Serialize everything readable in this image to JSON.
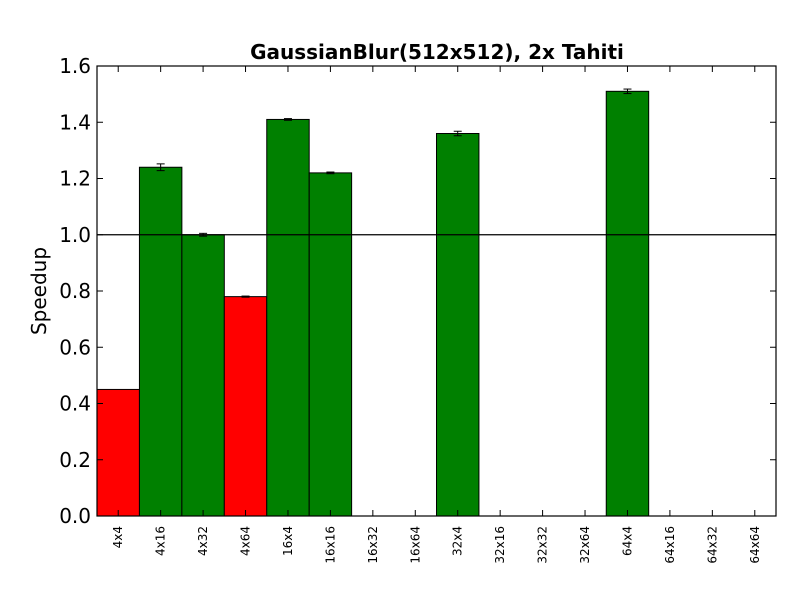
{
  "chart_data": {
    "type": "bar",
    "title": "GaussianBlur(512x512), 2x Tahiti",
    "xlabel": "",
    "ylabel": "Speedup",
    "ylim": [
      0,
      1.6
    ],
    "yticks": [
      "0.0",
      "0.2",
      "0.4",
      "0.6",
      "0.8",
      "1.0",
      "1.2",
      "1.4",
      "1.6"
    ],
    "reference_line": 1.0,
    "grid": false,
    "categories": [
      "4x4",
      "4x16",
      "4x32",
      "4x64",
      "16x4",
      "16x16",
      "16x32",
      "16x64",
      "32x4",
      "32x16",
      "32x32",
      "32x64",
      "64x4",
      "64x16",
      "64x32",
      "64x64"
    ],
    "values": [
      0.45,
      1.24,
      1.0,
      0.78,
      1.41,
      1.22,
      null,
      null,
      1.36,
      null,
      null,
      null,
      1.51,
      null,
      null,
      null
    ],
    "errors": [
      0.0,
      0.012,
      0.005,
      0.002,
      0.003,
      0.003,
      null,
      null,
      0.008,
      null,
      null,
      null,
      0.008,
      null,
      null,
      null
    ],
    "colors": {
      "below_baseline": "#ff0000",
      "above_baseline": "#008000",
      "axis": "#000000"
    }
  }
}
